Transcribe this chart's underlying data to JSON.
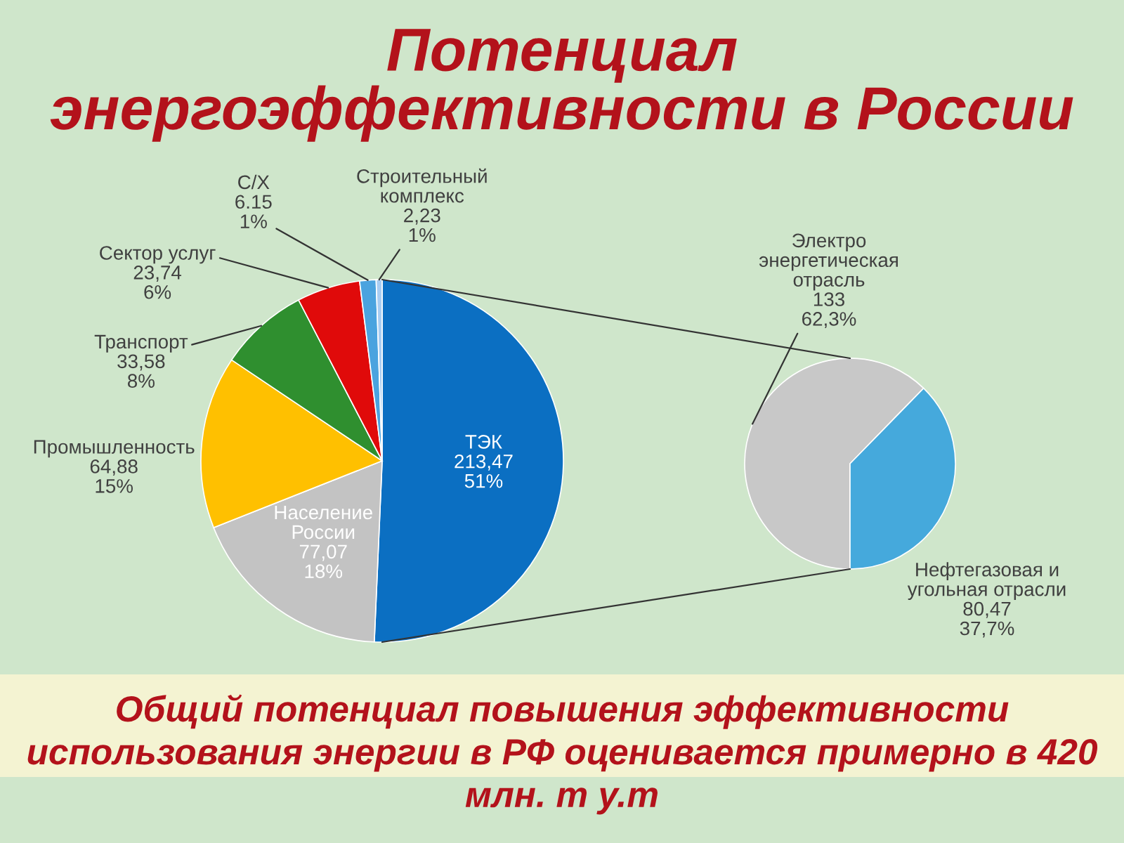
{
  "chart_data": [
    {
      "type": "pie",
      "title": "Потенциал\nэнергоэффективности в России",
      "categories": [
        "ТЭК",
        "Население\nРоссии",
        "Промышленность",
        "Транспорт",
        "Сектор услуг",
        "С/Х",
        "Строительный\nкомплекс"
      ],
      "values": [
        213.47,
        77.07,
        64.88,
        33.58,
        23.74,
        6.15,
        2.23
      ],
      "colors": [
        "#0b6fc2",
        "#c3c3c3",
        "#ffc000",
        "#2f8f2f",
        "#e00a0a",
        "#4aa3df",
        "#a9cdf2"
      ],
      "value_labels": [
        "213,47\n51%",
        "77,07\n18%",
        "64,88\n15%",
        "33,58\n8%",
        "23,74\n6%",
        "6.15\n1%",
        "2,23\n1%"
      ],
      "annotations": [
        "Общий потенциал повышения эффективности\nиспользования энергии в РФ оценивается примерно в 420\nмлн. т у.т"
      ]
    },
    {
      "type": "pie",
      "categories": [
        "Электро\nэнергетическая\nотрасль",
        "Нефтегазовая и\nугольная отрасли"
      ],
      "values": [
        133,
        80.47
      ],
      "colors": [
        "#c8c8c8",
        "#45a9dc"
      ],
      "value_labels": [
        "133\n62,3%",
        "80,47\n37,7%"
      ]
    }
  ]
}
